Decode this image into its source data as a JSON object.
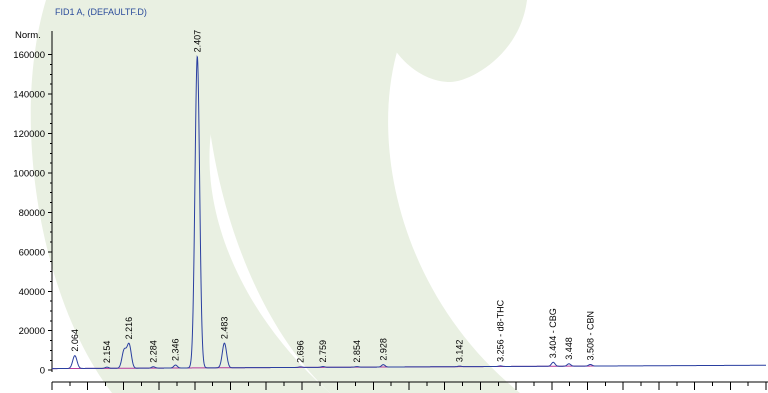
{
  "chart_data": {
    "type": "line",
    "title": "FID1 A,  (DEFAULTF.D)",
    "ylabel": "Norm.",
    "xlabel": "",
    "ylim": [
      -6000,
      172000
    ],
    "xlim": [
      2.0,
      4.0
    ],
    "y_ticks": [
      0,
      20000,
      40000,
      60000,
      80000,
      100000,
      120000,
      140000,
      160000
    ],
    "y_tick_labels": [
      "0",
      "20000",
      "40000",
      "60000",
      "80000",
      "100000",
      "120000",
      "140000",
      "160000"
    ],
    "grid": false,
    "series": [
      {
        "trace_peaks": [
          {
            "rt": 2.064,
            "height": 6500,
            "width": 0.006
          },
          {
            "rt": 2.154,
            "height": 600,
            "width": 0.005
          },
          {
            "rt": 2.202,
            "height": 9000,
            "width": 0.006
          },
          {
            "rt": 2.216,
            "height": 12000,
            "width": 0.006
          },
          {
            "rt": 2.284,
            "height": 700,
            "width": 0.005
          },
          {
            "rt": 2.346,
            "height": 1500,
            "width": 0.005
          },
          {
            "rt": 2.407,
            "height": 158000,
            "width": 0.0065
          },
          {
            "rt": 2.483,
            "height": 12500,
            "width": 0.006
          },
          {
            "rt": 2.696,
            "height": 300,
            "width": 0.005
          },
          {
            "rt": 2.759,
            "height": 400,
            "width": 0.005
          },
          {
            "rt": 2.854,
            "height": 300,
            "width": 0.005
          },
          {
            "rt": 2.928,
            "height": 1200,
            "width": 0.005
          },
          {
            "rt": 3.142,
            "height": 300,
            "width": 0.005
          },
          {
            "rt": 3.256,
            "height": 300,
            "width": 0.005
          },
          {
            "rt": 3.404,
            "height": 2000,
            "width": 0.005
          },
          {
            "rt": 3.448,
            "height": 1200,
            "width": 0.005
          },
          {
            "rt": 3.508,
            "height": 800,
            "width": 0.005
          }
        ],
        "baseline_drift": {
          "start": 800,
          "end": 2500
        }
      }
    ],
    "peak_labels": [
      {
        "rt": 2.064,
        "text": "2.064"
      },
      {
        "rt": 2.154,
        "text": "2.154"
      },
      {
        "rt": 2.216,
        "text": "2.216"
      },
      {
        "rt": 2.284,
        "text": "2.284"
      },
      {
        "rt": 2.346,
        "text": "2.346"
      },
      {
        "rt": 2.407,
        "text": "2.407"
      },
      {
        "rt": 2.483,
        "text": "2.483"
      },
      {
        "rt": 2.696,
        "text": "2.696"
      },
      {
        "rt": 2.759,
        "text": "2.759"
      },
      {
        "rt": 2.854,
        "text": "2.854"
      },
      {
        "rt": 2.928,
        "text": "2.928"
      },
      {
        "rt": 3.142,
        "text": "3.142"
      },
      {
        "rt": 3.256,
        "text": "3.256 - d8-THC"
      },
      {
        "rt": 3.404,
        "text": "3.404 - CBG"
      },
      {
        "rt": 3.448,
        "text": "3.448"
      },
      {
        "rt": 3.508,
        "text": "3.508 - CBN"
      }
    ],
    "colors": {
      "trace": "#2a3fa0",
      "baseline": "#b43a9c",
      "title": "#2b4c9b",
      "watermark": "#e9f0e2"
    }
  }
}
